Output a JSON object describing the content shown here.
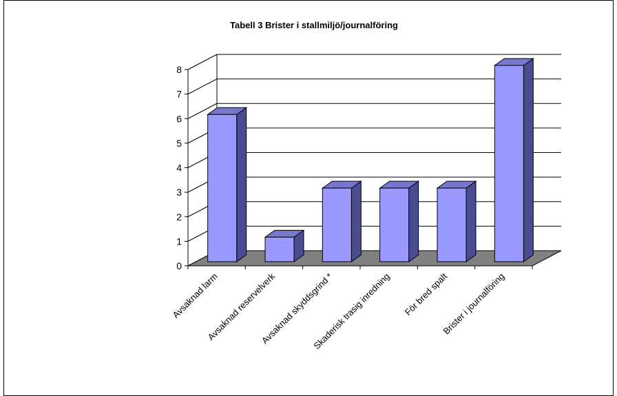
{
  "chart_data": {
    "type": "bar",
    "title": "Tabell 3 Brister i stallmiljö/journalföring",
    "categories": [
      "Avsaknad larm",
      "Avsaknad reservelverk",
      "Avsaknad skyddsgrind *",
      "Skaderisk trasig inredning",
      "För bred spalt",
      "Brister i journalföring"
    ],
    "values": [
      6,
      1,
      3,
      3,
      3,
      8
    ],
    "ylim": [
      0,
      8
    ],
    "yticks": [
      0,
      1,
      2,
      3,
      4,
      5,
      6,
      7,
      8
    ],
    "grid": true,
    "style": "3d",
    "colors": {
      "bar_front": "#9999ff",
      "bar_side": "#4b4b8f",
      "bar_top": "#7777d0",
      "floor": "#808080"
    }
  }
}
